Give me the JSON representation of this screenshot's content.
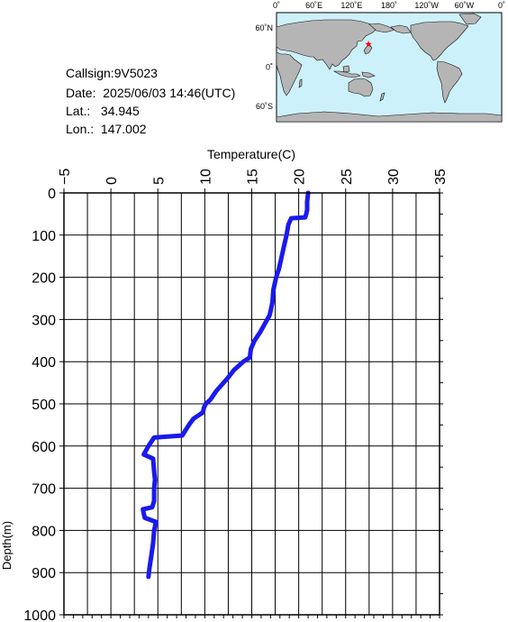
{
  "info": {
    "callsign": "Callsign:9V5023",
    "date": "Date:  2025/06/03 14:46(UTC)",
    "lat": "Lat.:   34.945",
    "lon": "Lon.:  147.002"
  },
  "map": {
    "top_ticks": [
      "0˚",
      "60˚E",
      "120˚E",
      "180˚",
      "120˚W",
      "60˚W",
      "0˚"
    ],
    "left_ticks": [
      "60˚N",
      "0˚",
      "60˚S"
    ],
    "ocean_color": "#cdf1fb",
    "land_color": "#b5b5b5",
    "marker": {
      "lat": 34.945,
      "lon": 147.002,
      "color": "#ff0000",
      "icon": "star-icon"
    }
  },
  "chart_data": {
    "type": "line",
    "title": "",
    "xlabel": "Temperature(C)",
    "ylabel": "Depth(m)",
    "xlim": [
      -5,
      35
    ],
    "ylim": [
      0,
      1000
    ],
    "y_inverted": true,
    "x_ticks": [
      -5,
      0,
      5,
      10,
      15,
      20,
      25,
      30,
      35
    ],
    "y_ticks": [
      0,
      100,
      200,
      300,
      400,
      500,
      600,
      700,
      800,
      900,
      1000
    ],
    "grid": true,
    "line_color": "#1a1aee",
    "series": [
      {
        "x": [
          21.0,
          20.9,
          20.9,
          20.8,
          20.7,
          19.2,
          18.9,
          18.7,
          18.4,
          18.1,
          17.9,
          17.6,
          17.3,
          17.2,
          17.1,
          17.0,
          16.9,
          16.4,
          15.9,
          15.3,
          14.9,
          14.8,
          14.1,
          13.1,
          12.4,
          11.2,
          10.6,
          10.1,
          9.9,
          9.8,
          8.8,
          8.3,
          7.6,
          4.6,
          4.0,
          3.5,
          4.5,
          4.6,
          4.7,
          4.6,
          4.6,
          4.4,
          3.4,
          3.6,
          4.8,
          4.6,
          4.5,
          4.3,
          4.1,
          4.0
        ],
        "y": [
          0,
          20,
          40,
          50,
          58,
          60,
          75,
          100,
          130,
          160,
          180,
          200,
          230,
          260,
          270,
          280,
          290,
          310,
          330,
          350,
          370,
          390,
          400,
          420,
          440,
          470,
          490,
          500,
          510,
          520,
          535,
          550,
          575,
          580,
          600,
          620,
          630,
          660,
          680,
          700,
          730,
          745,
          750,
          770,
          780,
          800,
          830,
          860,
          890,
          910
        ]
      }
    ]
  }
}
